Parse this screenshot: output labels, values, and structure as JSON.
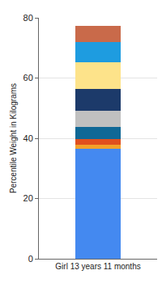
{
  "chart_data": {
    "type": "bar",
    "stacked": true,
    "grid": true,
    "y_label": "Percentile Weight in Kilograms",
    "categories": [
      "Girl 13 years 11 months"
    ],
    "series": [
      {
        "color": "#4489F0",
        "values": [
          36.5
        ]
      },
      {
        "color": "#F2A12A",
        "values": [
          1.4
        ]
      },
      {
        "color": "#E0501E",
        "values": [
          1.8
        ]
      },
      {
        "color": "#0F6896",
        "values": [
          4.0
        ]
      },
      {
        "color": "#C0C0C0",
        "values": [
          5.4
        ]
      },
      {
        "color": "#1C3A6A",
        "values": [
          7.4
        ]
      },
      {
        "color": "#FDE38A",
        "values": [
          8.8
        ]
      },
      {
        "color": "#1E9CE0",
        "values": [
          6.7
        ]
      },
      {
        "color": "#C96A4A",
        "values": [
          5.3
        ]
      }
    ],
    "ylim": [
      0,
      80
    ],
    "yticks": [
      0,
      20,
      40,
      60,
      80
    ]
  }
}
